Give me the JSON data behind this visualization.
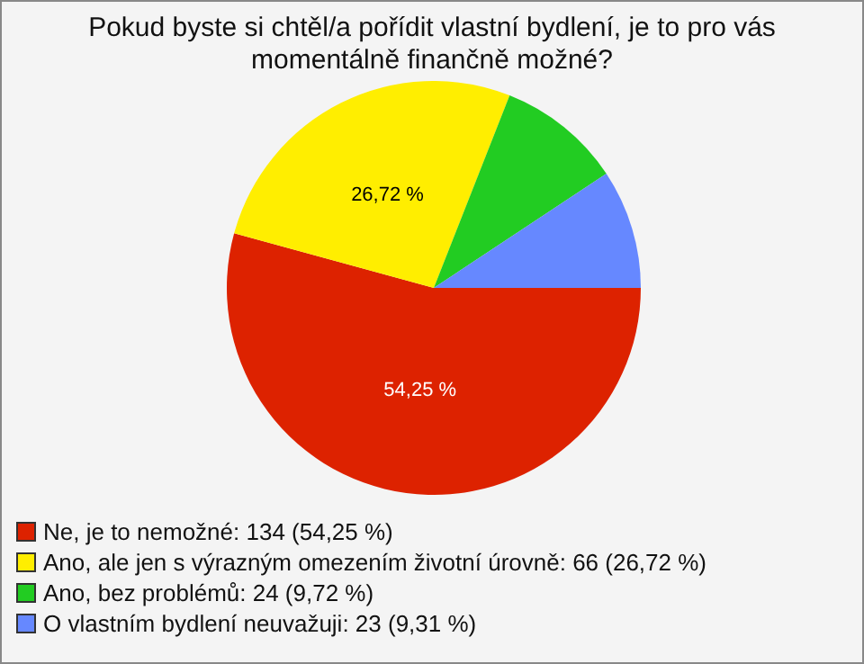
{
  "chart_data": {
    "type": "pie",
    "title": "Pokud byste si chtěl/a pořídit vlastní bydlení, je to pro vás momentálně finančně možné?",
    "categories": [
      "Ne, je to nemožné: 134 (54,25 %)",
      "Ano, ale jen s výrazným omezením životní úrovně: 66 (26,72 %)",
      "Ano, bez problémů: 24 (9,72 %)",
      "O vlastním bydlení neuvažuji: 23 (9,31 %)"
    ],
    "values": [
      54.25,
      26.72,
      9.72,
      9.31
    ],
    "colors": [
      "#dd2200",
      "#ffee00",
      "#22cc22",
      "#6688ff"
    ],
    "value_labels": [
      "54,25 %",
      "26,72 %",
      null,
      null
    ],
    "legend": "bottom"
  }
}
